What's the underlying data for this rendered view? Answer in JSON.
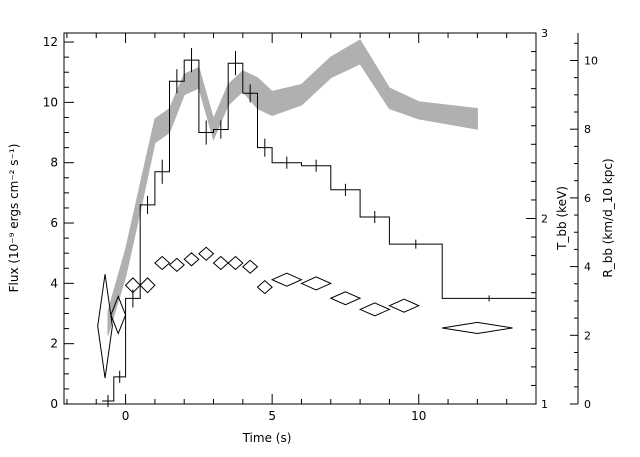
{
  "chart_data": {
    "type": "line",
    "xlabel": "Time (s)",
    "ylabel_left": "Flux (10⁻⁹ ergs cm⁻² s⁻¹)",
    "ylabel_tbb": "T_bb (keV)",
    "ylabel_rbb": "R_bb (km/d_10 kpc)",
    "xlim": [
      -2.1,
      14
    ],
    "ylim_left": [
      0,
      12.3
    ],
    "ylim_tbb": [
      1,
      3
    ],
    "ylim_rbb": [
      0,
      10.8
    ],
    "x_ticks": [
      {
        "v": 0,
        "label": "0"
      },
      {
        "v": 5,
        "label": "5"
      },
      {
        "v": 10,
        "label": "10"
      }
    ],
    "y_left_ticks": [
      {
        "v": 0,
        "label": "0"
      },
      {
        "v": 2,
        "label": "2"
      },
      {
        "v": 4,
        "label": "4"
      },
      {
        "v": 6,
        "label": "6"
      },
      {
        "v": 8,
        "label": "8"
      },
      {
        "v": 10,
        "label": "10"
      },
      {
        "v": 12,
        "label": "12"
      }
    ],
    "y_tbb_ticks": [
      {
        "v": 1,
        "label": "1"
      },
      {
        "v": 2,
        "label": "2"
      },
      {
        "v": 3,
        "label": "3"
      }
    ],
    "y_rbb_ticks": [
      {
        "v": 0,
        "label": "0"
      },
      {
        "v": 2,
        "label": "2"
      },
      {
        "v": 4,
        "label": "4"
      },
      {
        "v": 6,
        "label": "6"
      },
      {
        "v": 8,
        "label": "8"
      },
      {
        "v": 10,
        "label": "10"
      }
    ],
    "flux_steps": [
      {
        "t0": -0.8,
        "t1": -0.4,
        "f": 0.1,
        "err": 0.2
      },
      {
        "t0": -0.4,
        "t1": 0.0,
        "f": 0.9,
        "err": 0.2
      },
      {
        "t0": 0.0,
        "t1": 0.5,
        "f": 3.5,
        "err": 0.3
      },
      {
        "t0": 0.5,
        "t1": 1.0,
        "f": 6.6,
        "err": 0.3
      },
      {
        "t0": 1.0,
        "t1": 1.5,
        "f": 7.7,
        "err": 0.4
      },
      {
        "t0": 1.5,
        "t1": 2.0,
        "f": 10.7,
        "err": 0.4
      },
      {
        "t0": 2.0,
        "t1": 2.5,
        "f": 11.4,
        "err": 0.4
      },
      {
        "t0": 2.5,
        "t1": 3.0,
        "f": 9.0,
        "err": 0.4
      },
      {
        "t0": 3.0,
        "t1": 3.5,
        "f": 9.1,
        "err": 0.3
      },
      {
        "t0": 3.5,
        "t1": 4.0,
        "f": 11.3,
        "err": 0.4
      },
      {
        "t0": 4.0,
        "t1": 4.5,
        "f": 10.3,
        "err": 0.3
      },
      {
        "t0": 4.5,
        "t1": 5.0,
        "f": 8.5,
        "err": 0.3
      },
      {
        "t0": 5.0,
        "t1": 6.0,
        "f": 8.0,
        "err": 0.2
      },
      {
        "t0": 6.0,
        "t1": 7.0,
        "f": 7.9,
        "err": 0.2
      },
      {
        "t0": 7.0,
        "t1": 8.0,
        "f": 7.1,
        "err": 0.2
      },
      {
        "t0": 8.0,
        "t1": 9.0,
        "f": 6.2,
        "err": 0.2
      },
      {
        "t0": 9.0,
        "t1": 10.8,
        "f": 5.3,
        "err": 0.15
      },
      {
        "t0": 10.8,
        "t1": 14.0,
        "f": 3.5,
        "err": 0.1
      }
    ],
    "radius_band": {
      "t": [
        -0.6,
        0.0,
        0.5,
        1.0,
        1.5,
        2.0,
        2.5,
        3.0,
        3.5,
        4.0,
        4.5,
        5.0,
        6.0,
        7.0,
        8.0,
        9.0,
        10.0,
        12.0
      ],
      "lo": [
        2.0,
        3.7,
        5.6,
        7.6,
        7.9,
        9.0,
        9.2,
        7.7,
        8.7,
        9.1,
        8.6,
        8.4,
        8.7,
        9.5,
        9.9,
        8.6,
        8.3,
        8.0
      ],
      "hi": [
        2.7,
        4.5,
        6.4,
        8.3,
        8.6,
        9.6,
        9.8,
        8.3,
        9.3,
        9.7,
        9.5,
        9.1,
        9.3,
        10.1,
        10.6,
        9.2,
        8.8,
        8.6
      ]
    },
    "temperature_points": [
      {
        "t": -0.7,
        "dt": 0.25,
        "kt": 1.42,
        "dkt": 0.28
      },
      {
        "t": -0.25,
        "dt": 0.25,
        "kt": 1.48,
        "dkt": 0.1
      },
      {
        "t": 0.25,
        "dt": 0.25,
        "kt": 1.64,
        "dkt": 0.04
      },
      {
        "t": 0.75,
        "dt": 0.25,
        "kt": 1.64,
        "dkt": 0.04
      },
      {
        "t": 1.25,
        "dt": 0.25,
        "kt": 1.76,
        "dkt": 0.035
      },
      {
        "t": 1.75,
        "dt": 0.25,
        "kt": 1.75,
        "dkt": 0.035
      },
      {
        "t": 2.25,
        "dt": 0.25,
        "kt": 1.78,
        "dkt": 0.035
      },
      {
        "t": 2.75,
        "dt": 0.25,
        "kt": 1.81,
        "dkt": 0.035
      },
      {
        "t": 3.25,
        "dt": 0.25,
        "kt": 1.76,
        "dkt": 0.035
      },
      {
        "t": 3.75,
        "dt": 0.25,
        "kt": 1.76,
        "dkt": 0.035
      },
      {
        "t": 4.25,
        "dt": 0.25,
        "kt": 1.74,
        "dkt": 0.035
      },
      {
        "t": 4.75,
        "dt": 0.25,
        "kt": 1.63,
        "dkt": 0.035
      },
      {
        "t": 5.5,
        "dt": 0.5,
        "kt": 1.67,
        "dkt": 0.035
      },
      {
        "t": 6.5,
        "dt": 0.5,
        "kt": 1.65,
        "dkt": 0.035
      },
      {
        "t": 7.5,
        "dt": 0.5,
        "kt": 1.57,
        "dkt": 0.035
      },
      {
        "t": 8.5,
        "dt": 0.5,
        "kt": 1.51,
        "dkt": 0.035
      },
      {
        "t": 9.5,
        "dt": 0.5,
        "kt": 1.53,
        "dkt": 0.035
      },
      {
        "t": 12.0,
        "dt": 1.2,
        "kt": 1.41,
        "dkt": 0.03
      }
    ]
  }
}
